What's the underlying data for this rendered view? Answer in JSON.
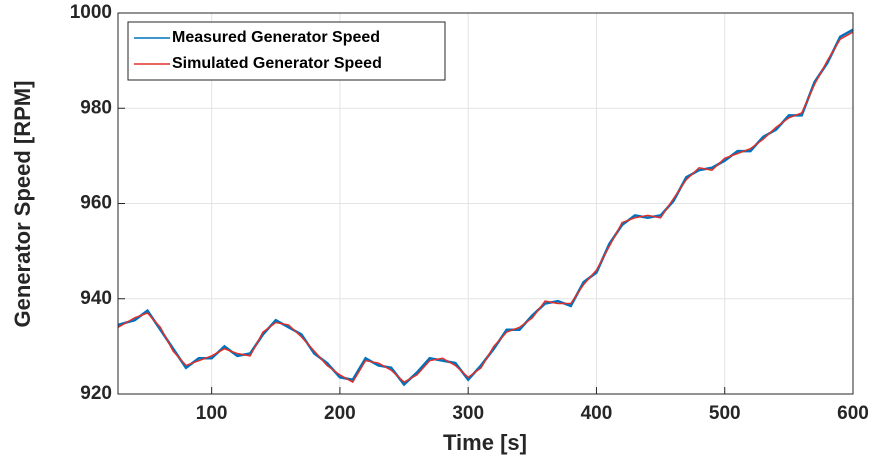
{
  "chart_data": {
    "type": "line",
    "xlabel": "Time [s]",
    "ylabel": "Generator Speed [RPM]",
    "x": [
      27,
      40,
      50,
      60,
      70,
      80,
      90,
      100,
      110,
      120,
      130,
      140,
      150,
      160,
      170,
      180,
      190,
      200,
      210,
      220,
      230,
      240,
      250,
      260,
      270,
      280,
      290,
      300,
      310,
      320,
      330,
      340,
      350,
      360,
      370,
      380,
      390,
      400,
      410,
      420,
      430,
      440,
      450,
      460,
      470,
      480,
      490,
      500,
      510,
      520,
      530,
      540,
      550,
      560,
      570,
      580,
      590,
      600
    ],
    "series": [
      {
        "name": "Measured Generator Speed",
        "color": "#0072bd",
        "values": [
          934.5,
          935.5,
          937.5,
          933.5,
          929.5,
          925.5,
          927.5,
          927.5,
          930,
          928,
          928.5,
          932.5,
          935.5,
          934,
          932.5,
          928.5,
          926.5,
          923.5,
          923,
          927.5,
          926,
          925.5,
          922,
          924.5,
          927.5,
          927,
          926.5,
          923,
          926,
          929.5,
          933.5,
          933.5,
          936.5,
          939,
          939.5,
          938.5,
          943.5,
          945.5,
          951.5,
          955.5,
          957.5,
          957,
          957.5,
          960.5,
          965.5,
          967,
          967.5,
          969,
          971,
          971,
          974,
          975.5,
          978.5,
          978.5,
          985.5,
          989.5,
          995,
          996.5
        ]
      },
      {
        "name": "Simulated Generator Speed",
        "color": "#e0302a",
        "values": [
          934,
          936,
          937,
          934,
          929,
          926,
          927,
          928,
          929.5,
          928.5,
          928,
          933,
          935,
          934.5,
          932,
          929,
          926,
          924,
          922.5,
          927,
          926.5,
          925,
          922.5,
          924,
          927,
          927.5,
          926,
          923.5,
          925.5,
          930,
          933,
          934,
          936,
          939.5,
          939,
          939,
          943,
          946,
          951,
          956,
          957,
          957.5,
          957,
          961,
          965,
          967.5,
          967,
          969.5,
          970.5,
          971.5,
          973.5,
          976,
          978,
          979,
          985,
          990,
          994.5,
          996
        ]
      }
    ],
    "xlim": [
      27,
      600
    ],
    "xticks": [
      100,
      200,
      300,
      400,
      500,
      600
    ],
    "ylim": [
      920,
      1000
    ],
    "yticks": [
      920,
      940,
      960,
      980,
      1000
    ],
    "grid": true,
    "legend": "upper left"
  }
}
